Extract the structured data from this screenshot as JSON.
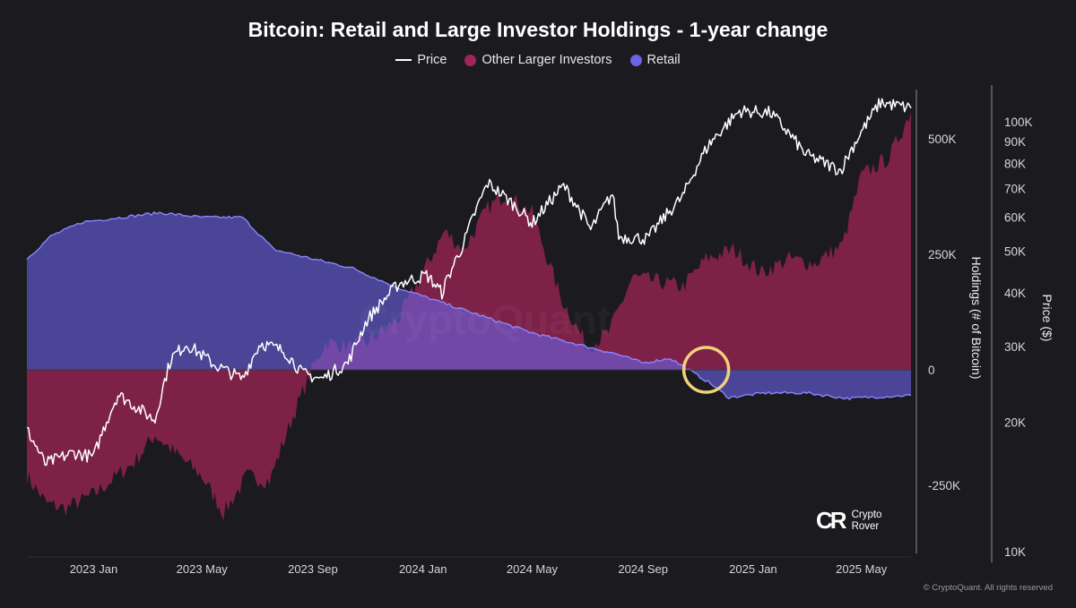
{
  "title": "Bitcoin: Retail and Large Investor Holdings - 1-year change",
  "legend": {
    "price": "Price",
    "larger": "Other Larger Investors",
    "retail": "Retail"
  },
  "logo": {
    "mark": "CR",
    "line1": "Crypto",
    "line2": "Rover"
  },
  "watermark": "CryptoQuant",
  "copyright": "© CryptoQuant. All rights reserved",
  "colors": {
    "background": "#1b1a1f",
    "price": "#ffffff",
    "larger_investors": "#a3245a",
    "retail": "#6a63e6",
    "highlight_circle": "#f0d27a"
  },
  "chart_data": {
    "type": "area",
    "title": "Bitcoin: Retail and Large Investor Holdings - 1-year change",
    "x_ticks": [
      "2023 Jan",
      "2023 May",
      "2023 Sep",
      "2024 Jan",
      "2024 May",
      "2024 Sep",
      "2025 Jan",
      "2025 May"
    ],
    "x_tick_dates": [
      "2023-01-01",
      "2023-05-01",
      "2023-09-01",
      "2024-01-01",
      "2024-05-01",
      "2024-09-01",
      "2025-01-01",
      "2025-05-01"
    ],
    "x_range": [
      "2022-10-19",
      "2025-06-25"
    ],
    "y_left": {
      "label": "Holdings (# of Bitcoin)",
      "ticks": [
        500000,
        250000,
        0,
        -250000
      ],
      "tick_labels": [
        "500K",
        "250K",
        "0",
        "-250K"
      ],
      "range": [
        -380000,
        600000
      ]
    },
    "y_right": {
      "label": "Price ($)",
      "scale": "log",
      "ticks": [
        100000,
        90000,
        80000,
        70000,
        60000,
        50000,
        40000,
        30000,
        20000,
        10000
      ],
      "tick_labels": [
        "100K",
        "90K",
        "80K",
        "70K",
        "60K",
        "50K",
        "40K",
        "30K",
        "20K",
        "10K"
      ],
      "range": [
        10000,
        150000
      ]
    },
    "grid": false,
    "legend_position": "top-center",
    "series": [
      {
        "name": "Price",
        "type": "line",
        "axis": "right",
        "points": [
          [
            "2022-10-19",
            19200
          ],
          [
            "2022-11-08",
            16000
          ],
          [
            "2022-12-10",
            17000
          ],
          [
            "2023-01-01",
            16600
          ],
          [
            "2023-01-28",
            23200
          ],
          [
            "2023-03-10",
            20200
          ],
          [
            "2023-03-28",
            28200
          ],
          [
            "2023-04-14",
            30400
          ],
          [
            "2023-05-15",
            27200
          ],
          [
            "2023-06-15",
            25200
          ],
          [
            "2023-07-05",
            30600
          ],
          [
            "2023-08-01",
            29200
          ],
          [
            "2023-08-20",
            26000
          ],
          [
            "2023-09-11",
            25200
          ],
          [
            "2023-10-10",
            27500
          ],
          [
            "2023-10-31",
            34500
          ],
          [
            "2023-12-05",
            42000
          ],
          [
            "2024-01-05",
            44000
          ],
          [
            "2024-01-22",
            40000
          ],
          [
            "2024-02-15",
            52000
          ],
          [
            "2024-03-13",
            72000
          ],
          [
            "2024-04-15",
            63000
          ],
          [
            "2024-05-01",
            58000
          ],
          [
            "2024-06-05",
            71000
          ],
          [
            "2024-07-05",
            56000
          ],
          [
            "2024-07-29",
            68000
          ],
          [
            "2024-08-05",
            54000
          ],
          [
            "2024-09-06",
            53500
          ],
          [
            "2024-10-15",
            67000
          ],
          [
            "2024-11-12",
            88000
          ],
          [
            "2024-12-17",
            106000
          ],
          [
            "2025-01-20",
            105000
          ],
          [
            "2025-02-28",
            84000
          ],
          [
            "2025-04-08",
            77000
          ],
          [
            "2025-05-22",
            111000
          ],
          [
            "2025-06-25",
            107500
          ]
        ]
      },
      {
        "name": "Other Larger Investors",
        "type": "area",
        "axis": "left",
        "points": [
          [
            "2022-10-19",
            -230000
          ],
          [
            "2022-11-10",
            -290000
          ],
          [
            "2022-12-01",
            -300000
          ],
          [
            "2023-01-01",
            -270000
          ],
          [
            "2023-02-15",
            -200000
          ],
          [
            "2023-03-10",
            -140000
          ],
          [
            "2023-04-01",
            -180000
          ],
          [
            "2023-05-01",
            -230000
          ],
          [
            "2023-05-25",
            -310000
          ],
          [
            "2023-06-20",
            -230000
          ],
          [
            "2023-07-15",
            -240000
          ],
          [
            "2023-08-10",
            -100000
          ],
          [
            "2023-08-31",
            0
          ],
          [
            "2023-09-15",
            60000
          ],
          [
            "2023-10-10",
            50000
          ],
          [
            "2023-11-01",
            60000
          ],
          [
            "2023-12-05",
            110000
          ],
          [
            "2024-01-01",
            210000
          ],
          [
            "2024-01-25",
            300000
          ],
          [
            "2024-02-15",
            260000
          ],
          [
            "2024-03-13",
            350000
          ],
          [
            "2024-04-01",
            380000
          ],
          [
            "2024-05-01",
            340000
          ],
          [
            "2024-06-01",
            160000
          ],
          [
            "2024-07-01",
            50000
          ],
          [
            "2024-07-25",
            80000
          ],
          [
            "2024-08-20",
            200000
          ],
          [
            "2024-09-20",
            190000
          ],
          [
            "2024-10-15",
            180000
          ],
          [
            "2024-11-10",
            240000
          ],
          [
            "2024-12-10",
            260000
          ],
          [
            "2025-01-10",
            210000
          ],
          [
            "2025-02-10",
            240000
          ],
          [
            "2025-03-10",
            230000
          ],
          [
            "2025-04-10",
            270000
          ],
          [
            "2025-05-01",
            420000
          ],
          [
            "2025-06-01",
            460000
          ],
          [
            "2025-06-25",
            560000
          ]
        ]
      },
      {
        "name": "Retail",
        "type": "area",
        "axis": "left",
        "points": [
          [
            "2022-10-19",
            240000
          ],
          [
            "2022-11-15",
            290000
          ],
          [
            "2022-12-20",
            320000
          ],
          [
            "2023-02-01",
            330000
          ],
          [
            "2023-03-15",
            340000
          ],
          [
            "2023-05-01",
            330000
          ],
          [
            "2023-06-15",
            330000
          ],
          [
            "2023-07-20",
            260000
          ],
          [
            "2023-09-01",
            240000
          ],
          [
            "2023-10-15",
            220000
          ],
          [
            "2023-12-01",
            180000
          ],
          [
            "2024-01-15",
            150000
          ],
          [
            "2024-03-01",
            120000
          ],
          [
            "2024-05-01",
            80000
          ],
          [
            "2024-07-01",
            50000
          ],
          [
            "2024-08-01",
            35000
          ],
          [
            "2024-09-01",
            15000
          ],
          [
            "2024-10-01",
            25000
          ],
          [
            "2024-11-15",
            -30000
          ],
          [
            "2024-12-05",
            -60000
          ],
          [
            "2025-01-15",
            -50000
          ],
          [
            "2025-03-01",
            -50000
          ],
          [
            "2025-04-15",
            -62000
          ],
          [
            "2025-06-25",
            -55000
          ]
        ]
      }
    ],
    "annotations": [
      {
        "type": "circle",
        "date": "2024-11-10",
        "value": 0
      }
    ]
  }
}
